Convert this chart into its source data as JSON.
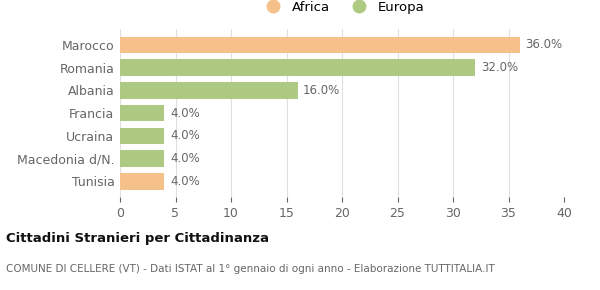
{
  "categories": [
    "Marocco",
    "Romania",
    "Albania",
    "Francia",
    "Ucraina",
    "Macedonia d/N.",
    "Tunisia"
  ],
  "values": [
    36.0,
    32.0,
    16.0,
    4.0,
    4.0,
    4.0,
    4.0
  ],
  "colors": [
    "#F5C08A",
    "#AECA82",
    "#AECA82",
    "#AECA82",
    "#AECA82",
    "#AECA82",
    "#F5C08A"
  ],
  "legend": [
    {
      "label": "Africa",
      "color": "#F5C08A"
    },
    {
      "label": "Europa",
      "color": "#AECA82"
    }
  ],
  "xlim": [
    0,
    40
  ],
  "xticks": [
    0,
    5,
    10,
    15,
    20,
    25,
    30,
    35,
    40
  ],
  "title": "Cittadini Stranieri per Cittadinanza",
  "subtitle": "COMUNE DI CELLERE (VT) - Dati ISTAT al 1° gennaio di ogni anno - Elaborazione TUTTITALIA.IT",
  "background_color": "#ffffff",
  "label_color": "#666666",
  "grid_color": "#e0e0e0"
}
